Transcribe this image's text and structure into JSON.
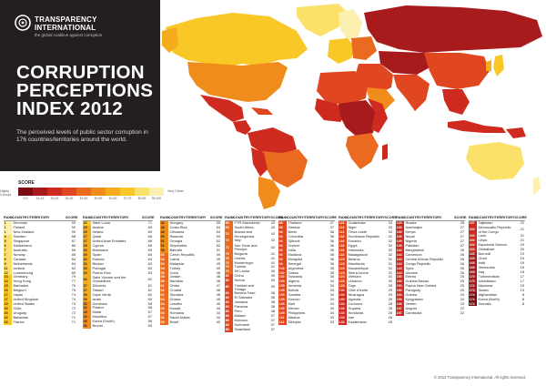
{
  "header": {
    "logo_line1": "TRANSPARENCY",
    "logo_line2": "INTERNATIONAL",
    "logo_tagline": "the global coalition against corruption",
    "title_line1": "CORRUPTION",
    "title_line2": "PERCEPTIONS",
    "title_line3": "INDEX 2012",
    "subtitle": "The perceived levels of public sector corruption in 176 countries/territories around the world."
  },
  "legend": {
    "title": "SCORE",
    "left_label": "Highly Corrupt",
    "right_label": "Very Clean",
    "ticks": [
      "0-9",
      "10-19",
      "20-29",
      "30-39",
      "40-49",
      "50-59",
      "60-69",
      "70-79",
      "80-89",
      "90-100"
    ],
    "colors": [
      "#7a0b12",
      "#a81b1c",
      "#cf2a1f",
      "#e0461f",
      "#ea6a1f",
      "#f08c1c",
      "#f5ac1c",
      "#f9c826",
      "#fbe06a",
      "#fcf0b0"
    ]
  },
  "table": {
    "headers": {
      "rank": "RANK",
      "country": "COUNTRY/TERRITORY",
      "score": "SCORE"
    },
    "columns": [
      [
        [
          "1",
          "Denmark",
          "90"
        ],
        [
          "1",
          "Finland",
          "90"
        ],
        [
          "1",
          "New Zealand",
          "90"
        ],
        [
          "4",
          "Sweden",
          "88"
        ],
        [
          "5",
          "Singapore",
          "87"
        ],
        [
          "6",
          "Switzerland",
          "86"
        ],
        [
          "7",
          "Australia",
          "85"
        ],
        [
          "7",
          "Norway",
          "85"
        ],
        [
          "9",
          "Canada",
          "84"
        ],
        [
          "9",
          "Netherlands",
          "84"
        ],
        [
          "11",
          "Iceland",
          "82"
        ],
        [
          "12",
          "Luxembourg",
          "80"
        ],
        [
          "13",
          "Germany",
          "79"
        ],
        [
          "14",
          "Hong Kong",
          "77"
        ],
        [
          "15",
          "Barbados",
          "76"
        ],
        [
          "16",
          "Belgium",
          "75"
        ],
        [
          "17",
          "Japan",
          "74"
        ],
        [
          "17",
          "United Kingdom",
          "74"
        ],
        [
          "19",
          "United States",
          "73"
        ],
        [
          "20",
          "Chile",
          "72"
        ],
        [
          "20",
          "Uruguay",
          "72"
        ],
        [
          "22",
          "Bahamas",
          "71"
        ],
        [
          "22",
          "France",
          "71"
        ]
      ],
      [
        [
          "22",
          "Saint Lucia",
          "71"
        ],
        [
          "25",
          "Austria",
          "69"
        ],
        [
          "25",
          "Ireland",
          "69"
        ],
        [
          "27",
          "Qatar",
          "68"
        ],
        [
          "27",
          "United Arab Emirates",
          "68"
        ],
        [
          "29",
          "Cyprus",
          "66"
        ],
        [
          "30",
          "Botswana",
          "65"
        ],
        [
          "30",
          "Spain",
          "65"
        ],
        [
          "32",
          "Estonia",
          "64"
        ],
        [
          "33",
          "Bhutan",
          "63"
        ],
        [
          "33",
          "Portugal",
          "63"
        ],
        [
          "33",
          "Puerto Rico",
          "63"
        ],
        [
          "36",
          "Saint Vincent and the Grenadines",
          "62"
        ],
        [
          "37",
          "Slovenia",
          "61"
        ],
        [
          "37",
          "Taiwan",
          "61"
        ],
        [
          "39",
          "Cape Verde",
          "60"
        ],
        [
          "39",
          "Israel",
          "60"
        ],
        [
          "41",
          "Dominica",
          "58"
        ],
        [
          "41",
          "Poland",
          "58"
        ],
        [
          "43",
          "Malta",
          "57"
        ],
        [
          "43",
          "Mauritius",
          "57"
        ],
        [
          "45",
          "Korea (South)",
          "56"
        ],
        [
          "46",
          "Brunei",
          "55"
        ]
      ],
      [
        [
          "46",
          "Hungary",
          "55"
        ],
        [
          "48",
          "Costa Rica",
          "54"
        ],
        [
          "48",
          "Lithuania",
          "54"
        ],
        [
          "50",
          "Rwanda",
          "53"
        ],
        [
          "51",
          "Georgia",
          "52"
        ],
        [
          "51",
          "Seychelles",
          "52"
        ],
        [
          "53",
          "Bahrain",
          "51"
        ],
        [
          "54",
          "Czech Republic",
          "49"
        ],
        [
          "54",
          "Latvia",
          "49"
        ],
        [
          "54",
          "Malaysia",
          "49"
        ],
        [
          "54",
          "Turkey",
          "49"
        ],
        [
          "58",
          "Cuba",
          "48"
        ],
        [
          "58",
          "Jordan",
          "48"
        ],
        [
          "58",
          "Namibia",
          "48"
        ],
        [
          "61",
          "Oman",
          "47"
        ],
        [
          "62",
          "Croatia",
          "46"
        ],
        [
          "62",
          "Slovakia",
          "46"
        ],
        [
          "64",
          "Ghana",
          "45"
        ],
        [
          "64",
          "Lesotho",
          "45"
        ],
        [
          "66",
          "Kuwait",
          "44"
        ],
        [
          "66",
          "Romania",
          "44"
        ],
        [
          "66",
          "Saudi Arabia",
          "44"
        ],
        [
          "69",
          "Brazil",
          "43"
        ]
      ],
      [
        [
          "69",
          "FYR Macedonia",
          "43"
        ],
        [
          "69",
          "South Africa",
          "43"
        ],
        [
          "72",
          "Bosnia and Herzegovina",
          "42"
        ],
        [
          "72",
          "Italy",
          "42"
        ],
        [
          "72",
          "Sao Tome and Principe",
          "42"
        ],
        [
          "75",
          "Bulgaria",
          "41"
        ],
        [
          "75",
          "Liberia",
          "41"
        ],
        [
          "75",
          "Montenegro",
          "41"
        ],
        [
          "75",
          "Tunisia",
          "41"
        ],
        [
          "79",
          "Sri Lanka",
          "40"
        ],
        [
          "80",
          "China",
          "39"
        ],
        [
          "80",
          "Serbia",
          "39"
        ],
        [
          "80",
          "Trinidad and Tobago",
          "39"
        ],
        [
          "83",
          "Burkina Faso",
          "38"
        ],
        [
          "83",
          "El Salvador",
          "38"
        ],
        [
          "83",
          "Jamaica",
          "38"
        ],
        [
          "83",
          "Panama",
          "38"
        ],
        [
          "83",
          "Peru",
          "38"
        ],
        [
          "88",
          "Malawi",
          "37"
        ],
        [
          "88",
          "Morocco",
          "37"
        ],
        [
          "88",
          "Suriname",
          "37"
        ],
        [
          "88",
          "Swaziland",
          "37"
        ]
      ],
      [
        [
          "88",
          "Thailand",
          "37"
        ],
        [
          "88",
          "Zambia",
          "37"
        ],
        [
          "94",
          "Benin",
          "36"
        ],
        [
          "94",
          "Colombia",
          "36"
        ],
        [
          "94",
          "Djibouti",
          "36"
        ],
        [
          "94",
          "Greece",
          "36"
        ],
        [
          "94",
          "India",
          "36"
        ],
        [
          "94",
          "Moldova",
          "36"
        ],
        [
          "94",
          "Mongolia",
          "36"
        ],
        [
          "94",
          "Senegal",
          "36"
        ],
        [
          "102",
          "Argentina",
          "35"
        ],
        [
          "102",
          "Gabon",
          "35"
        ],
        [
          "102",
          "Tanzania",
          "35"
        ],
        [
          "105",
          "Algeria",
          "34"
        ],
        [
          "105",
          "Armenia",
          "34"
        ],
        [
          "105",
          "Bolivia",
          "34"
        ],
        [
          "105",
          "Gambia",
          "34"
        ],
        [
          "105",
          "Kosovo",
          "34"
        ],
        [
          "105",
          "Mali",
          "34"
        ],
        [
          "105",
          "Mexico",
          "34"
        ],
        [
          "105",
          "Philippines",
          "34"
        ],
        [
          "113",
          "Albania",
          "33"
        ],
        [
          "113",
          "Ethiopia",
          "33"
        ]
      ],
      [
        [
          "113",
          "Guatemala",
          "33"
        ],
        [
          "113",
          "Niger",
          "33"
        ],
        [
          "113",
          "Timor-Leste",
          "33"
        ],
        [
          "118",
          "Dominican Republic",
          "32"
        ],
        [
          "118",
          "Ecuador",
          "32"
        ],
        [
          "118",
          "Egypt",
          "32"
        ],
        [
          "118",
          "Indonesia",
          "32"
        ],
        [
          "118",
          "Madagascar",
          "32"
        ],
        [
          "123",
          "Belarus",
          "31"
        ],
        [
          "123",
          "Mauritania",
          "31"
        ],
        [
          "123",
          "Mozambique",
          "31"
        ],
        [
          "123",
          "Sierra Leone",
          "31"
        ],
        [
          "123",
          "Vietnam",
          "31"
        ],
        [
          "128",
          "Lebanon",
          "30"
        ],
        [
          "128",
          "Togo",
          "30"
        ],
        [
          "130",
          "Côte d'Ivoire",
          "29"
        ],
        [
          "130",
          "Nicaragua",
          "29"
        ],
        [
          "130",
          "Uganda",
          "29"
        ],
        [
          "133",
          "Comoros",
          "28"
        ],
        [
          "133",
          "Guyana",
          "28"
        ],
        [
          "133",
          "Honduras",
          "28"
        ],
        [
          "133",
          "Iran",
          "28"
        ],
        [
          "133",
          "Kazakhstan",
          "28"
        ]
      ],
      [
        [
          "133",
          "Russia",
          "28"
        ],
        [
          "139",
          "Azerbaijan",
          "27"
        ],
        [
          "139",
          "Kenya",
          "27"
        ],
        [
          "139",
          "Nepal",
          "27"
        ],
        [
          "139",
          "Nigeria",
          "27"
        ],
        [
          "139",
          "Pakistan",
          "27"
        ],
        [
          "144",
          "Bangladesh",
          "26"
        ],
        [
          "144",
          "Cameroon",
          "26"
        ],
        [
          "144",
          "Central African Republic",
          "26"
        ],
        [
          "144",
          "Congo Republic",
          "26"
        ],
        [
          "144",
          "Syria",
          "26"
        ],
        [
          "144",
          "Ukraine",
          "26"
        ],
        [
          "150",
          "Eritrea",
          "25"
        ],
        [
          "150",
          "Guinea-Bissau",
          "25"
        ],
        [
          "150",
          "Papua New Guinea",
          "25"
        ],
        [
          "150",
          "Paraguay",
          "25"
        ],
        [
          "154",
          "Guinea",
          "24"
        ],
        [
          "154",
          "Kyrgyzstan",
          "24"
        ],
        [
          "156",
          "Yemen",
          "23"
        ],
        [
          "157",
          "Angola",
          "22"
        ],
        [
          "157",
          "Cambodia",
          "22"
        ]
      ],
      [
        [
          "157",
          "Tajikistan",
          "22"
        ],
        [
          "160",
          "Democratic Republic of the Congo",
          "21"
        ],
        [
          "160",
          "Laos",
          "21"
        ],
        [
          "160",
          "Libya",
          "21"
        ],
        [
          "163",
          "Equatorial Guinea",
          "20"
        ],
        [
          "163",
          "Zimbabwe",
          "20"
        ],
        [
          "165",
          "Burundi",
          "19"
        ],
        [
          "165",
          "Chad",
          "19"
        ],
        [
          "165",
          "Haiti",
          "19"
        ],
        [
          "165",
          "Venezuela",
          "19"
        ],
        [
          "169",
          "Iraq",
          "18"
        ],
        [
          "170",
          "Turkmenistan",
          "17"
        ],
        [
          "170",
          "Uzbekistan",
          "17"
        ],
        [
          "172",
          "Myanmar",
          "15"
        ],
        [
          "173",
          "Sudan",
          "13"
        ],
        [
          "174",
          "Afghanistan",
          "8"
        ],
        [
          "174",
          "Korea (North)",
          "8"
        ],
        [
          "174",
          "Somalia",
          "8"
        ]
      ]
    ]
  },
  "copyright": "© 2012 Transparency International. All rights reserved."
}
